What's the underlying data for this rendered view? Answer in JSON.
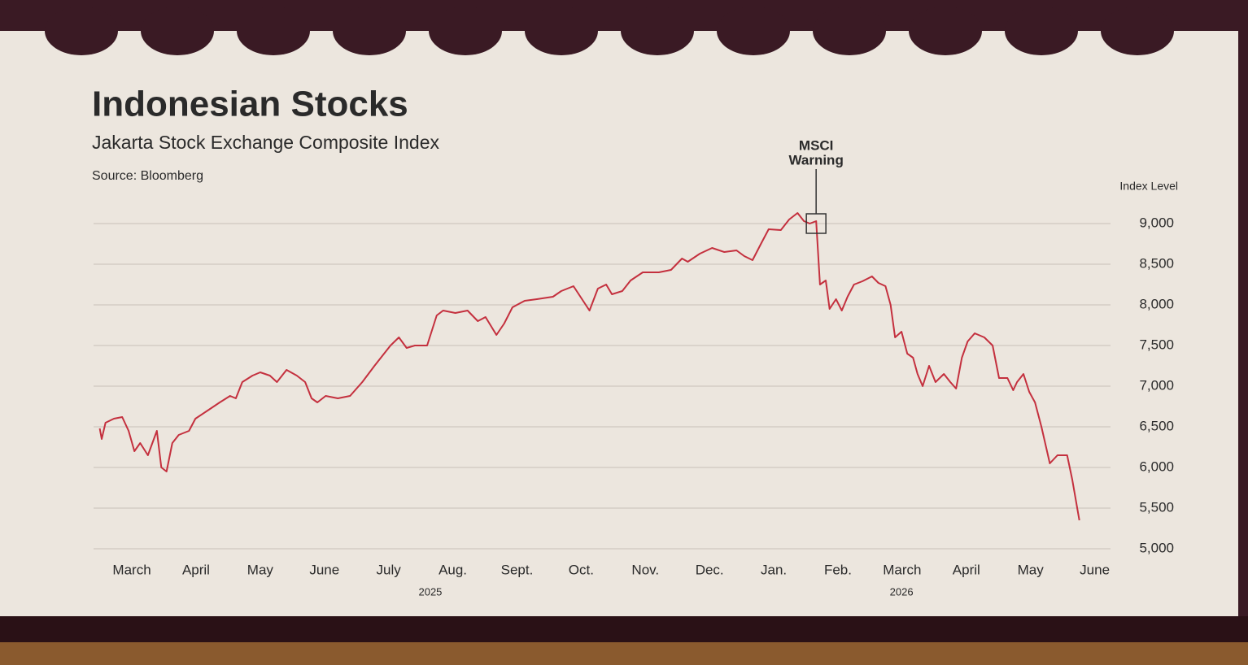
{
  "chart_data": {
    "type": "line",
    "title": "Indonesian Stocks",
    "subtitle": "Jakarta Stock Exchange Composite Index",
    "source": "Source: Bloomberg",
    "y_axis_label": "Index Level",
    "x": [
      0,
      0.03,
      0.09,
      0.22,
      0.35,
      0.45,
      0.54,
      0.63,
      0.75,
      0.89,
      0.96,
      1.04,
      1.13,
      1.23,
      1.39,
      1.49,
      1.68,
      1.87,
      2.03,
      2.12,
      2.22,
      2.38,
      2.5,
      2.65,
      2.76,
      2.91,
      3.07,
      3.2,
      3.3,
      3.39,
      3.52,
      3.71,
      3.9,
      4.09,
      4.28,
      4.43,
      4.53,
      4.66,
      4.78,
      4.91,
      5.1,
      5.25,
      5.35,
      5.54,
      5.73,
      5.89,
      6.01,
      6.18,
      6.3,
      6.43,
      6.62,
      6.81,
      7.06,
      7.19,
      7.38,
      7.53,
      7.63,
      7.76,
      7.89,
      7.98,
      8.14,
      8.27,
      8.46,
      8.71,
      8.9,
      9.07,
      9.16,
      9.35,
      9.54,
      9.73,
      9.92,
      10.04,
      10.17,
      10.3,
      10.42,
      10.61,
      10.74,
      10.87,
      10.97,
      11.06,
      11.16,
      11.22,
      11.31,
      11.37,
      11.47,
      11.56,
      11.65,
      11.75,
      11.88,
      12.03,
      12.13,
      12.24,
      12.32,
      12.39,
      12.49,
      12.58,
      12.67,
      12.74,
      12.82,
      12.92,
      13.02,
      13.15,
      13.25,
      13.34,
      13.43,
      13.52,
      13.63,
      13.78,
      13.91,
      14.01,
      14.14,
      14.23,
      14.29,
      14.39,
      14.48,
      14.57,
      14.67,
      14.8,
      14.92,
      15.07,
      15.15,
      15.26
    ],
    "series": [
      {
        "name": "Jakarta Composite",
        "color": "#c4303e",
        "values": [
          6480,
          6350,
          6550,
          6600,
          6620,
          6450,
          6200,
          6300,
          6150,
          6450,
          6000,
          5950,
          6300,
          6400,
          6450,
          6600,
          6700,
          6800,
          6880,
          6850,
          7050,
          7130,
          7170,
          7130,
          7050,
          7200,
          7130,
          7050,
          6850,
          6800,
          6880,
          6850,
          6880,
          7050,
          7250,
          7400,
          7500,
          7600,
          7470,
          7500,
          7500,
          7870,
          7930,
          7900,
          7930,
          7800,
          7850,
          7630,
          7770,
          7970,
          8050,
          8070,
          8100,
          8170,
          8230,
          8050,
          7930,
          8200,
          8250,
          8130,
          8170,
          8300,
          8400,
          8400,
          8430,
          8570,
          8530,
          8630,
          8700,
          8650,
          8670,
          8600,
          8550,
          8750,
          8930,
          8920,
          9050,
          9130,
          9030,
          9000,
          9030,
          8250,
          8300,
          7950,
          8070,
          7930,
          8100,
          8250,
          8290,
          8350,
          8270,
          8230,
          8000,
          7600,
          7670,
          7400,
          7350,
          7150,
          7000,
          7250,
          7050,
          7150,
          7050,
          6970,
          7350,
          7550,
          7650,
          7600,
          7500,
          7100,
          7100,
          6950,
          7050,
          7150,
          6930,
          6800,
          6500,
          6050,
          6150,
          6150,
          5850,
          5350
        ]
      }
    ],
    "xlim": [
      0,
      15.5
    ],
    "xticks": [
      {
        "value": 0.5,
        "label": "March"
      },
      {
        "value": 1.5,
        "label": "April"
      },
      {
        "value": 2.5,
        "label": "May"
      },
      {
        "value": 3.5,
        "label": "June"
      },
      {
        "value": 4.5,
        "label": "July"
      },
      {
        "value": 5.5,
        "label": "Aug."
      },
      {
        "value": 6.5,
        "label": "Sept."
      },
      {
        "value": 7.5,
        "label": "Oct."
      },
      {
        "value": 8.5,
        "label": "Nov."
      },
      {
        "value": 9.5,
        "label": "Dec."
      },
      {
        "value": 10.5,
        "label": "Jan."
      },
      {
        "value": 11.5,
        "label": "Feb."
      },
      {
        "value": 12.5,
        "label": "March"
      },
      {
        "value": 13.5,
        "label": "April"
      },
      {
        "value": 14.5,
        "label": "May"
      },
      {
        "value": 15.5,
        "label": "June"
      }
    ],
    "year_labels": [
      {
        "value": 5.15,
        "label": "2025"
      },
      {
        "value": 12.49,
        "label": "2026"
      }
    ],
    "ylim": [
      5000,
      9400
    ],
    "yticks": [
      {
        "value": 5000,
        "label": "5,000"
      },
      {
        "value": 5500,
        "label": "5,500"
      },
      {
        "value": 6000,
        "label": "6,000"
      },
      {
        "value": 6500,
        "label": "6,500"
      },
      {
        "value": 7000,
        "label": "7,000"
      },
      {
        "value": 7500,
        "label": "7,500"
      },
      {
        "value": 8000,
        "label": "8,000"
      },
      {
        "value": 8500,
        "label": "8,500"
      },
      {
        "value": 9000,
        "label": "9,000"
      }
    ],
    "grid": true,
    "annotation": {
      "lines": [
        "MSCI",
        "Warning"
      ],
      "x": 11.16,
      "y": 9000
    }
  }
}
